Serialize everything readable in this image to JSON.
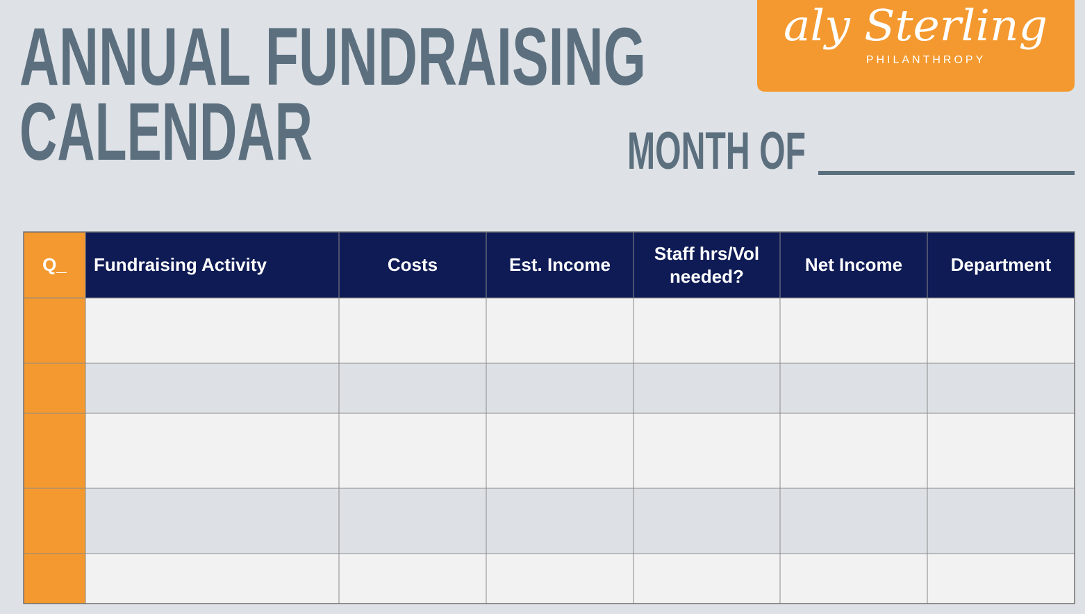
{
  "header": {
    "title_lines": [
      "ANNUAL FUNDRAISING",
      "CALENDAR"
    ],
    "month_label": "MONTH OF"
  },
  "logo": {
    "name": "aly Sterling",
    "tagline": "PHILANTHROPY"
  },
  "table": {
    "headers": [
      "Q_",
      "Fundraising Activity",
      "Costs",
      "Est. Income",
      "Staff hrs/Vol needed?",
      "Net Income",
      "Department"
    ]
  }
}
